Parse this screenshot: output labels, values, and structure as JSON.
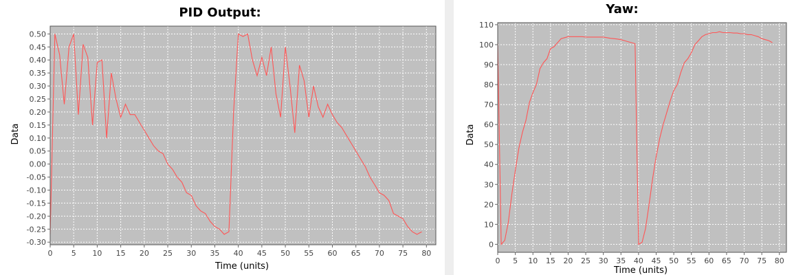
{
  "chart_data": [
    {
      "type": "line",
      "title": "PID Output:",
      "xlabel": "Time (units)",
      "ylabel": "Data",
      "xlim": [
        0,
        82
      ],
      "ylim": [
        -0.31,
        0.53
      ],
      "xticks": [
        0,
        5,
        10,
        15,
        20,
        25,
        30,
        35,
        40,
        45,
        50,
        55,
        60,
        65,
        70,
        75,
        80
      ],
      "yticks": [
        -0.3,
        -0.25,
        -0.2,
        -0.15,
        -0.1,
        -0.05,
        0.0,
        0.05,
        0.1,
        0.15,
        0.2,
        0.25,
        0.3,
        0.35,
        0.4,
        0.45,
        0.5
      ],
      "grid": true,
      "line_color": "#ff5555",
      "plot_bg": "#c0c0c0",
      "series": [
        {
          "x": [
            0,
            1,
            2,
            3,
            4,
            5,
            6,
            7,
            8,
            9,
            10,
            11,
            12,
            13,
            14,
            15,
            16,
            17,
            18,
            19,
            20,
            21,
            22,
            23,
            24,
            25,
            26,
            27,
            28,
            29,
            30,
            31,
            32,
            33,
            34,
            35,
            36,
            37,
            38,
            39,
            40,
            41,
            42,
            43,
            44,
            45,
            46,
            47,
            48,
            49,
            50,
            51,
            52,
            53,
            54,
            55,
            56,
            57,
            58,
            59,
            60,
            61,
            62,
            63,
            64,
            65,
            66,
            67,
            68,
            69,
            70,
            71,
            72,
            73,
            74,
            75,
            76,
            77,
            78,
            79
          ],
          "y": [
            -0.27,
            0.5,
            0.42,
            0.23,
            0.45,
            0.5,
            0.19,
            0.46,
            0.41,
            0.15,
            0.39,
            0.4,
            0.1,
            0.35,
            0.25,
            0.18,
            0.23,
            0.19,
            0.19,
            0.16,
            0.13,
            0.1,
            0.07,
            0.05,
            0.04,
            0.0,
            -0.02,
            -0.05,
            -0.07,
            -0.11,
            -0.12,
            -0.16,
            -0.18,
            -0.19,
            -0.22,
            -0.24,
            -0.25,
            -0.27,
            -0.26,
            0.2,
            0.5,
            0.49,
            0.5,
            0.4,
            0.34,
            0.41,
            0.34,
            0.45,
            0.27,
            0.18,
            0.45,
            0.3,
            0.12,
            0.38,
            0.32,
            0.18,
            0.3,
            0.22,
            0.18,
            0.23,
            0.19,
            0.16,
            0.14,
            0.11,
            0.08,
            0.05,
            0.02,
            -0.01,
            -0.05,
            -0.08,
            -0.11,
            -0.12,
            -0.14,
            -0.19,
            -0.2,
            -0.21,
            -0.24,
            -0.26,
            -0.27,
            -0.26
          ]
        }
      ]
    },
    {
      "type": "line",
      "title": "Yaw:",
      "xlabel": "Time (units)",
      "ylabel": "Data",
      "xlim": [
        0,
        82
      ],
      "ylim": [
        -4,
        111
      ],
      "xticks": [
        0,
        5,
        10,
        15,
        20,
        25,
        30,
        35,
        40,
        45,
        50,
        55,
        60,
        65,
        70,
        75,
        80
      ],
      "yticks": [
        0,
        10,
        20,
        30,
        40,
        50,
        60,
        70,
        80,
        90,
        100,
        110
      ],
      "grid": true,
      "line_color": "#ff5555",
      "plot_bg": "#c0c0c0",
      "series": [
        {
          "x": [
            0,
            1,
            2,
            3,
            4,
            5,
            6,
            7,
            8,
            9,
            10,
            11,
            12,
            13,
            14,
            15,
            16,
            17,
            18,
            19,
            20,
            21,
            22,
            23,
            24,
            25,
            26,
            27,
            28,
            29,
            30,
            31,
            32,
            33,
            34,
            35,
            36,
            37,
            38,
            39,
            40,
            41,
            42,
            43,
            44,
            45,
            46,
            47,
            48,
            49,
            50,
            51,
            52,
            53,
            54,
            55,
            56,
            57,
            58,
            59,
            60,
            61,
            62,
            63,
            64,
            65,
            66,
            67,
            68,
            69,
            70,
            71,
            72,
            73,
            74,
            75,
            76,
            77,
            78
          ],
          "y": [
            101,
            0,
            2,
            11,
            25,
            37,
            48,
            56,
            62,
            71,
            76,
            80,
            88,
            91,
            93,
            98,
            99,
            101,
            103,
            103.5,
            104,
            104,
            104,
            104,
            104,
            103.8,
            103.8,
            103.8,
            103.8,
            103.8,
            103.8,
            103.5,
            103.2,
            103,
            102.8,
            102.5,
            102,
            101.5,
            101,
            100.5,
            0,
            1,
            8,
            20,
            33,
            44,
            53,
            60,
            66,
            72,
            77,
            80,
            86,
            91,
            93,
            96,
            100,
            102,
            104,
            105,
            105.5,
            106,
            106,
            106.5,
            106,
            106,
            106,
            105.8,
            105.8,
            105.5,
            105.5,
            105,
            105,
            104.5,
            104,
            103,
            102.5,
            102,
            101
          ]
        }
      ]
    }
  ]
}
